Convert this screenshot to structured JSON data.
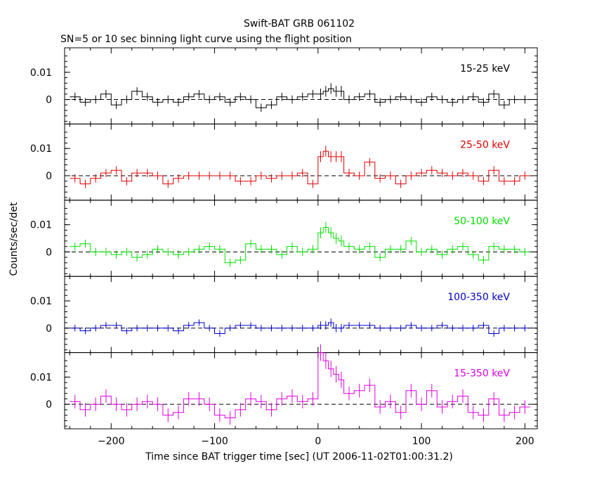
{
  "chart_data": {
    "type": "line",
    "title": "Swift-BAT GRB 061102",
    "subtitle": "SN=5 or 10 sec binning light curve using the flight position",
    "xlabel": "Time since BAT trigger time [sec] (UT 2006-11-02T01:00:31.2)",
    "ylabel": "Counts/sec/det",
    "xlim": [
      -245,
      212
    ],
    "ylim": [
      -0.009,
      0.019
    ],
    "x_ticks": [
      -200,
      -100,
      0,
      100,
      200
    ],
    "y_ticks": [
      0,
      0.01
    ],
    "y_tick_labels": [
      "0",
      "0.01"
    ],
    "grid": false,
    "shared_x": true,
    "bins": {
      "start": -240,
      "width": 10,
      "count": 44,
      "burst_bin_edges": [
        0,
        5,
        10,
        15,
        20,
        25
      ],
      "burst_bin_width": 5
    },
    "panels": [
      {
        "name": "15-25 keV",
        "color": "#000000",
        "x": [
          -235,
          -225,
          -215,
          -205,
          -195,
          -185,
          -175,
          -165,
          -155,
          -145,
          -135,
          -125,
          -115,
          -105,
          -95,
          -85,
          -75,
          -65,
          -55,
          -45,
          -35,
          -25,
          -15,
          -5,
          2.5,
          7.5,
          12.5,
          17.5,
          22.5,
          30,
          40,
          50,
          60,
          70,
          80,
          90,
          100,
          110,
          120,
          130,
          140,
          150,
          160,
          170,
          180,
          190,
          200
        ],
        "values": [
          0.001,
          -0.001,
          0.0,
          0.002,
          -0.002,
          0.0,
          0.003,
          0.001,
          -0.001,
          0.0,
          -0.001,
          0.001,
          0.002,
          0.0,
          0.001,
          -0.001,
          0.001,
          0.0,
          -0.003,
          -0.002,
          0.001,
          0.0,
          0.001,
          0.002,
          0.002,
          0.003,
          0.004,
          0.003,
          0.003,
          0.0,
          0.001,
          0.002,
          -0.001,
          0.0,
          0.001,
          0.0,
          -0.001,
          0.001,
          0.0,
          -0.001,
          0.0,
          0.001,
          -0.001,
          0.002,
          -0.002,
          0.0,
          0.0
        ],
        "errors": [
          0.0015,
          0.0015,
          0.0015,
          0.0015,
          0.0015,
          0.0015,
          0.0015,
          0.0015,
          0.0015,
          0.0015,
          0.0015,
          0.0015,
          0.0015,
          0.0015,
          0.0015,
          0.0015,
          0.0015,
          0.0015,
          0.0015,
          0.0015,
          0.0015,
          0.0015,
          0.0015,
          0.0015,
          0.002,
          0.002,
          0.002,
          0.002,
          0.002,
          0.0015,
          0.0015,
          0.0015,
          0.0015,
          0.0015,
          0.0015,
          0.0015,
          0.0015,
          0.0015,
          0.0015,
          0.0015,
          0.0015,
          0.0015,
          0.0015,
          0.0015,
          0.0015,
          0.0015,
          0.0015
        ]
      },
      {
        "name": "25-50 keV",
        "color": "#e00000",
        "x": [
          -235,
          -225,
          -215,
          -205,
          -195,
          -185,
          -175,
          -165,
          -155,
          -145,
          -135,
          -125,
          -115,
          -105,
          -95,
          -85,
          -75,
          -65,
          -55,
          -45,
          -35,
          -25,
          -15,
          -5,
          2.5,
          7.5,
          12.5,
          17.5,
          22.5,
          30,
          40,
          50,
          60,
          70,
          80,
          90,
          100,
          110,
          120,
          130,
          140,
          150,
          160,
          170,
          180,
          190,
          200
        ],
        "values": [
          -0.001,
          -0.003,
          -0.001,
          0.001,
          0.002,
          -0.002,
          0.001,
          0.001,
          0.0,
          -0.003,
          -0.001,
          0.0,
          0.0,
          0.0,
          0.0,
          0.0,
          -0.002,
          -0.002,
          0.0,
          -0.001,
          0.0,
          0.0,
          0.001,
          -0.003,
          0.007,
          0.009,
          0.007,
          0.007,
          0.007,
          0.001,
          0.0,
          0.005,
          -0.001,
          0.0,
          -0.003,
          0.0,
          0.001,
          0.002,
          0.001,
          0.0,
          0.001,
          0.0,
          -0.002,
          0.002,
          -0.002,
          -0.002,
          0.0
        ],
        "errors": [
          0.0015,
          0.0015,
          0.0015,
          0.0015,
          0.0015,
          0.0015,
          0.0015,
          0.0015,
          0.0015,
          0.0015,
          0.0015,
          0.0015,
          0.0015,
          0.0015,
          0.0015,
          0.0015,
          0.0015,
          0.0015,
          0.0015,
          0.0015,
          0.0015,
          0.0015,
          0.0015,
          0.0015,
          0.002,
          0.002,
          0.002,
          0.002,
          0.002,
          0.0015,
          0.0015,
          0.0015,
          0.0015,
          0.0015,
          0.0015,
          0.0015,
          0.0015,
          0.0015,
          0.0015,
          0.0015,
          0.0015,
          0.0015,
          0.0015,
          0.0015,
          0.0015,
          0.0015,
          0.0015
        ]
      },
      {
        "name": "50-100 keV",
        "color": "#00e000",
        "x": [
          -235,
          -225,
          -215,
          -205,
          -195,
          -185,
          -175,
          -165,
          -155,
          -145,
          -135,
          -125,
          -115,
          -105,
          -95,
          -85,
          -75,
          -65,
          -55,
          -45,
          -35,
          -25,
          -15,
          -5,
          2.5,
          7.5,
          12.5,
          17.5,
          22.5,
          30,
          40,
          50,
          60,
          70,
          80,
          90,
          100,
          110,
          120,
          130,
          140,
          150,
          160,
          170,
          180,
          190,
          200
        ],
        "values": [
          0.002,
          0.003,
          0.0,
          0.0,
          -0.001,
          0.0,
          -0.002,
          -0.001,
          0.001,
          0.0,
          -0.001,
          0.0,
          0.001,
          0.002,
          0.001,
          -0.004,
          -0.003,
          0.003,
          0.001,
          0.001,
          -0.001,
          0.002,
          0.0,
          0.001,
          0.007,
          0.009,
          0.007,
          0.005,
          0.004,
          0.002,
          0.001,
          0.002,
          -0.002,
          0.001,
          0.001,
          0.004,
          0.0,
          0.001,
          -0.001,
          0.001,
          0.002,
          -0.001,
          -0.003,
          0.002,
          0.001,
          0.001,
          0.0
        ],
        "errors": [
          0.0015,
          0.0015,
          0.0015,
          0.0015,
          0.0015,
          0.0015,
          0.0015,
          0.0015,
          0.0015,
          0.0015,
          0.0015,
          0.0015,
          0.0015,
          0.0015,
          0.0015,
          0.0015,
          0.0015,
          0.0015,
          0.0015,
          0.0015,
          0.0015,
          0.0015,
          0.0015,
          0.0015,
          0.002,
          0.002,
          0.002,
          0.002,
          0.002,
          0.0015,
          0.0015,
          0.0015,
          0.0015,
          0.0015,
          0.0015,
          0.0015,
          0.0015,
          0.0015,
          0.0015,
          0.0015,
          0.0015,
          0.0015,
          0.0015,
          0.0015,
          0.0015,
          0.0015,
          0.0015
        ]
      },
      {
        "name": "100-350 keV",
        "color": "#0000c8",
        "x": [
          -235,
          -225,
          -215,
          -205,
          -195,
          -185,
          -175,
          -165,
          -155,
          -145,
          -135,
          -125,
          -115,
          -105,
          -95,
          -85,
          -75,
          -65,
          -55,
          -45,
          -35,
          -25,
          -15,
          -5,
          2.5,
          7.5,
          12.5,
          17.5,
          22.5,
          30,
          40,
          50,
          60,
          70,
          80,
          90,
          100,
          110,
          120,
          130,
          140,
          150,
          160,
          170,
          180,
          190,
          200
        ],
        "values": [
          0.0,
          -0.001,
          0.0,
          0.001,
          0.001,
          -0.001,
          0.0,
          0.0,
          0.0,
          0.0,
          -0.001,
          0.001,
          0.002,
          0.0,
          -0.002,
          0.0,
          0.001,
          0.001,
          0.0,
          0.0,
          0.0,
          0.0,
          0.0,
          0.0,
          0.001,
          0.001,
          0.002,
          0.0,
          0.0,
          0.001,
          0.001,
          0.001,
          0.0,
          0.0,
          0.0,
          0.001,
          0.0,
          0.0,
          0.001,
          0.0,
          0.0,
          0.0,
          0.001,
          -0.002,
          0.0,
          0.0,
          0.0
        ],
        "errors": [
          0.0012,
          0.0012,
          0.0012,
          0.0012,
          0.0012,
          0.0012,
          0.0012,
          0.0012,
          0.0012,
          0.0012,
          0.0012,
          0.0012,
          0.0012,
          0.0012,
          0.0012,
          0.0012,
          0.0012,
          0.0012,
          0.0012,
          0.0012,
          0.0012,
          0.0012,
          0.0012,
          0.0012,
          0.0015,
          0.0015,
          0.0015,
          0.0015,
          0.0015,
          0.0012,
          0.0012,
          0.0012,
          0.0012,
          0.0012,
          0.0012,
          0.0012,
          0.0012,
          0.0012,
          0.0012,
          0.0012,
          0.0012,
          0.0012,
          0.0012,
          0.0012,
          0.0012,
          0.0012,
          0.0012
        ]
      },
      {
        "name": "15-350 keV",
        "color": "#e000e0",
        "x": [
          -235,
          -225,
          -215,
          -205,
          -195,
          -185,
          -175,
          -165,
          -155,
          -145,
          -135,
          -125,
          -115,
          -105,
          -95,
          -85,
          -75,
          -65,
          -55,
          -45,
          -35,
          -25,
          -15,
          -5,
          2.5,
          7.5,
          12.5,
          17.5,
          22.5,
          30,
          40,
          50,
          60,
          70,
          80,
          90,
          100,
          110,
          120,
          130,
          140,
          150,
          160,
          170,
          180,
          190,
          200
        ],
        "values": [
          0.001,
          -0.002,
          0.0,
          0.003,
          0.0,
          -0.002,
          0.0,
          0.001,
          0.0,
          -0.004,
          -0.003,
          0.002,
          0.002,
          0.0,
          -0.004,
          -0.005,
          -0.002,
          0.002,
          0.001,
          -0.002,
          0.002,
          0.003,
          0.001,
          0.002,
          0.019,
          0.016,
          0.013,
          0.011,
          0.009,
          0.004,
          0.005,
          0.007,
          -0.001,
          0.001,
          -0.003,
          0.005,
          0.0,
          0.005,
          -0.001,
          0.001,
          0.003,
          -0.003,
          -0.004,
          0.002,
          -0.004,
          -0.003,
          -0.001
        ],
        "errors": [
          0.0025,
          0.0025,
          0.0025,
          0.0025,
          0.0025,
          0.0025,
          0.0025,
          0.0025,
          0.0025,
          0.0025,
          0.0025,
          0.0025,
          0.0025,
          0.0025,
          0.0025,
          0.0025,
          0.0025,
          0.0025,
          0.0025,
          0.0025,
          0.0025,
          0.0025,
          0.0025,
          0.0025,
          0.003,
          0.003,
          0.003,
          0.003,
          0.003,
          0.0025,
          0.0025,
          0.0025,
          0.0025,
          0.0025,
          0.0025,
          0.0025,
          0.0025,
          0.0025,
          0.0025,
          0.0025,
          0.0025,
          0.0025,
          0.0025,
          0.0025,
          0.0025,
          0.0025,
          0.0025
        ]
      }
    ]
  }
}
